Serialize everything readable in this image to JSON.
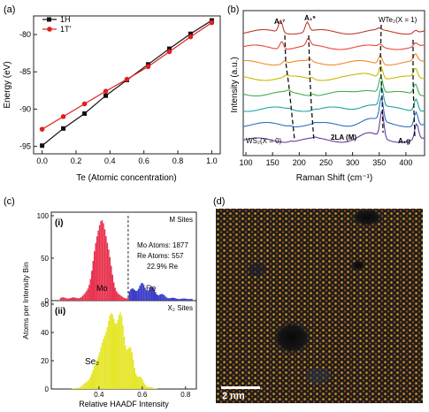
{
  "panels": {
    "a": {
      "label": "(a)"
    },
    "b": {
      "label": "(b)"
    },
    "c": {
      "label": "(c)"
    },
    "d": {
      "label": "(d)"
    }
  },
  "chart_data": [
    {
      "id": "a",
      "type": "line",
      "xlabel": "Te (Atomic concentration)",
      "ylabel": "Energy (eV)",
      "xlim": [
        -0.05,
        1.05
      ],
      "ylim": [
        -96,
        -77.5
      ],
      "xticks": [
        "0.0",
        "0.2",
        "0.4",
        "0.6",
        "0.8",
        "1.0"
      ],
      "yticks": [
        "-80",
        "-85",
        "-90",
        "-95"
      ],
      "legend": "top-left",
      "series": [
        {
          "name": "1H",
          "color": "#111111",
          "marker": "square",
          "x": [
            0,
            0.125,
            0.25,
            0.375,
            0.5,
            0.625,
            0.75,
            0.875,
            1.0
          ],
          "y": [
            -94.9,
            -92.6,
            -90.6,
            -88.2,
            -86.1,
            -84.0,
            -81.9,
            -79.9,
            -78.1
          ]
        },
        {
          "name": "1T'",
          "color": "#e02020",
          "marker": "circle",
          "x": [
            0,
            0.125,
            0.25,
            0.375,
            0.5,
            0.625,
            0.75,
            0.875,
            1.0
          ],
          "y": [
            -92.7,
            -91.0,
            -89.3,
            -87.6,
            -86.0,
            -84.3,
            -82.3,
            -80.3,
            -78.4
          ]
        }
      ]
    },
    {
      "id": "b",
      "type": "line",
      "xlabel": "Raman Shift (cm⁻¹)",
      "ylabel": "Intensity (a.u.)",
      "xlim": [
        95,
        435
      ],
      "xticks": [
        "100",
        "150",
        "200",
        "250",
        "300",
        "350",
        "400"
      ],
      "annotations": [
        "A₁⁷",
        "A₁⁹",
        "WTe₂(X = 1)",
        "WS₂(X = 0)",
        "2LA (M)",
        "A₁g"
      ],
      "series": [
        {
          "color": "#c0392b"
        },
        {
          "color": "#e8463c"
        },
        {
          "color": "#f08a24"
        },
        {
          "color": "#c9b800"
        },
        {
          "color": "#3fae49"
        },
        {
          "color": "#1fa3a8"
        },
        {
          "color": "#2e6fc2"
        },
        {
          "color": "#6a3d9a"
        }
      ]
    },
    {
      "id": "c",
      "type": "bar",
      "ylabel": "Atoms per Intensity Bin",
      "xlabel": "Relative HAADF Intensity",
      "xlim": [
        0.18,
        0.85
      ],
      "xticks": [
        "0.4",
        "0.6",
        "0.8"
      ],
      "top": {
        "tag": "(i)",
        "site": "M Sites",
        "ylim": [
          0,
          100
        ],
        "yticks": [
          "0",
          "50",
          "100"
        ],
        "stats": [
          "Mo Atoms: 1877",
          "Re Atoms: 557",
          "22.9% Re"
        ],
        "divider": 0.535,
        "series": [
          {
            "name": "Mo",
            "color": "#e8324f"
          },
          {
            "name": "Re",
            "color": "#3a3ac8"
          }
        ]
      },
      "bottom": {
        "tag": "(ii)",
        "site": "X₂ Sites",
        "ylim": [
          0,
          60
        ],
        "yticks": [
          "0",
          "20",
          "40",
          "60"
        ],
        "series": [
          {
            "name": "Se₂",
            "color": "#e6e62a"
          }
        ]
      }
    }
  ],
  "image_d": {
    "scale_bar": "2 nm"
  }
}
